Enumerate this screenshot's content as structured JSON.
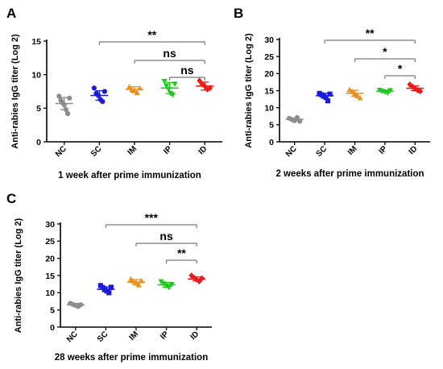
{
  "chart_data": [
    {
      "type": "scatter",
      "panel_label": "A",
      "xlabel": "1 week after prime immunization",
      "ylabel": "Anti-rabies IgG titer (Log 2)",
      "ylim": [
        0,
        15
      ],
      "yticks": [
        "0",
        "5",
        "10",
        "15"
      ],
      "categories": [
        "NC",
        "SC",
        "IM",
        "IP",
        "ID"
      ],
      "colors": [
        "#8c8c8c",
        "#1a1adb",
        "#e8901a",
        "#1ec81e",
        "#e81e1e"
      ],
      "markers": [
        "circle",
        "circle",
        "triangle",
        "triangle-down",
        "diamond"
      ],
      "points": [
        [
          6.8,
          6.2,
          5.8,
          5.5,
          4.8,
          4.2,
          6.5
        ],
        [
          8.0,
          7.2,
          6.9,
          6.3,
          6.0,
          7.5
        ],
        [
          8.2,
          7.8,
          7.6,
          7.3,
          8.0
        ],
        [
          9.0,
          8.3,
          7.8,
          7.2,
          7.0,
          8.6
        ],
        [
          9.1,
          8.6,
          8.3,
          7.8,
          8.0
        ]
      ],
      "means": [
        5.7,
        6.9,
        7.8,
        8.0,
        8.3
      ],
      "sd": [
        0.9,
        0.7,
        0.4,
        0.8,
        0.6
      ],
      "comparisons": [
        {
          "from": "SC",
          "to": "ID",
          "label": "**"
        },
        {
          "from": "IM",
          "to": "ID",
          "label": "ns"
        },
        {
          "from": "IP",
          "to": "ID",
          "label": "ns"
        }
      ]
    },
    {
      "type": "scatter",
      "panel_label": "B",
      "xlabel": "2 weeks after prime immunization",
      "ylabel": "Anti-rabies IgG titer (Log 2)",
      "ylim": [
        0,
        30
      ],
      "yticks": [
        "0",
        "5",
        "10",
        "15",
        "20",
        "25",
        "30"
      ],
      "categories": [
        "NC",
        "SC",
        "IM",
        "IP",
        "ID"
      ],
      "colors": [
        "#8c8c8c",
        "#1a1adb",
        "#e8901a",
        "#1ec81e",
        "#e81e1e"
      ],
      "markers": [
        "circle",
        "square",
        "triangle",
        "triangle-down",
        "diamond"
      ],
      "points": [
        [
          6.9,
          6.5,
          6.2,
          7.1,
          6.0
        ],
        [
          14.2,
          13.8,
          13.5,
          13.0,
          12.0,
          14.0
        ],
        [
          15.3,
          14.8,
          14.2,
          13.5,
          12.9
        ],
        [
          15.1,
          14.8,
          14.6,
          14.3,
          15.0
        ],
        [
          16.8,
          16.2,
          15.6,
          15.1,
          14.8
        ]
      ],
      "means": [
        6.6,
        13.5,
        14.2,
        14.8,
        15.7
      ],
      "sd": [
        0.4,
        0.7,
        0.9,
        0.3,
        0.7
      ],
      "comparisons": [
        {
          "from": "SC",
          "to": "ID",
          "label": "**"
        },
        {
          "from": "IM",
          "to": "ID",
          "label": "*"
        },
        {
          "from": "IP",
          "to": "ID",
          "label": "*"
        }
      ]
    },
    {
      "type": "scatter",
      "panel_label": "C",
      "xlabel": "28 weeks after prime immunization",
      "ylabel": "Anti-rabies IgG titer (Log 2)",
      "ylim": [
        0,
        30
      ],
      "yticks": [
        "0",
        "5",
        "10",
        "15",
        "20",
        "25",
        "30"
      ],
      "categories": [
        "NC",
        "SC",
        "IM",
        "IP",
        "ID"
      ],
      "colors": [
        "#8c8c8c",
        "#1a1adb",
        "#e8901a",
        "#1ec81e",
        "#e81e1e"
      ],
      "markers": [
        "circle",
        "square",
        "triangle",
        "triangle-down",
        "diamond"
      ],
      "points": [
        [
          6.9,
          6.6,
          6.3,
          6.0,
          6.5
        ],
        [
          12.1,
          11.5,
          11.0,
          10.5,
          10.0,
          11.6
        ],
        [
          14.0,
          13.4,
          12.8,
          12.3,
          13.5
        ],
        [
          13.2,
          12.6,
          12.0,
          11.5,
          12.4
        ],
        [
          15.0,
          14.4,
          13.8,
          13.3,
          14.2
        ]
      ],
      "means": [
        6.5,
        11.0,
        13.1,
        12.3,
        14.0
      ],
      "sd": [
        0.4,
        0.7,
        0.7,
        0.7,
        0.6
      ],
      "comparisons": [
        {
          "from": "SC",
          "to": "ID",
          "label": "***"
        },
        {
          "from": "IM",
          "to": "ID",
          "label": "ns"
        },
        {
          "from": "IP",
          "to": "ID",
          "label": "**"
        }
      ]
    }
  ]
}
